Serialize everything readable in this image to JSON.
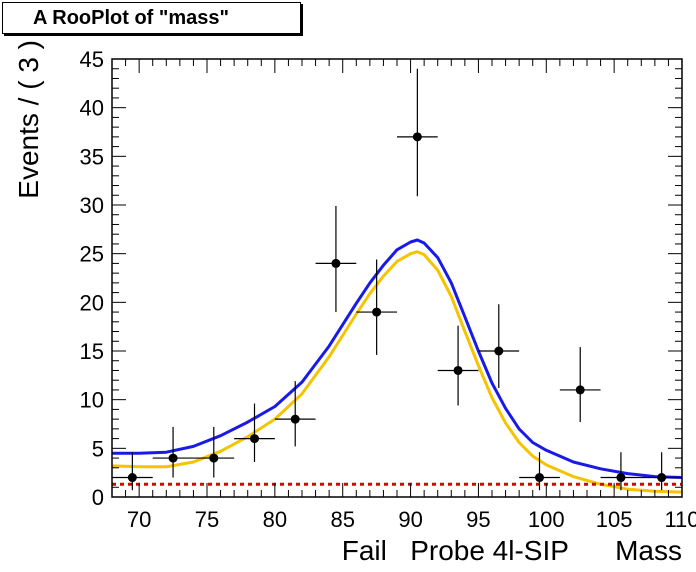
{
  "chart_data": {
    "type": "scatter",
    "title": "A RooPlot of \"mass\"",
    "xlabel": "Fail   Probe 4l-SIP      Mass",
    "ylabel": "Events / ( 3 )",
    "xlim": [
      68,
      110
    ],
    "ylim": [
      0,
      45
    ],
    "xticks": [
      70,
      75,
      80,
      85,
      90,
      95,
      100,
      105,
      110
    ],
    "yticks": [
      0,
      5,
      10,
      15,
      20,
      25,
      30,
      35,
      40,
      45
    ],
    "grid": false,
    "data_points": {
      "x": [
        69.5,
        72.5,
        75.5,
        78.5,
        81.5,
        84.5,
        87.5,
        90.5,
        93.5,
        96.5,
        99.5,
        102.5,
        105.5,
        108.5
      ],
      "y": [
        2,
        4,
        4,
        6,
        8,
        24,
        19,
        37,
        13,
        15,
        2,
        11,
        2,
        2
      ],
      "err_low": [
        1.3,
        2.0,
        2.0,
        2.4,
        2.8,
        5.0,
        4.4,
        6.1,
        3.6,
        3.8,
        1.3,
        3.3,
        1.3,
        1.3
      ],
      "err_high": [
        2.6,
        3.2,
        3.2,
        3.6,
        3.9,
        5.9,
        5.4,
        7.0,
        4.6,
        4.8,
        2.6,
        4.4,
        2.6,
        2.6
      ]
    },
    "series": [
      {
        "color": "#1a1ae6",
        "x": [
          68,
          70,
          72,
          74,
          76,
          78,
          80,
          82,
          84,
          86,
          87,
          88,
          89,
          90,
          90.5,
          91,
          92,
          93,
          94,
          95,
          96,
          97,
          98,
          99,
          100,
          102,
          104,
          106,
          108,
          110
        ],
        "y": [
          4.5,
          4.5,
          4.6,
          5.2,
          6.3,
          7.7,
          9.3,
          11.8,
          15.5,
          19.9,
          22.0,
          23.8,
          25.4,
          26.2,
          26.4,
          26.1,
          24.6,
          22.0,
          18.5,
          15.0,
          11.7,
          9.1,
          7.0,
          5.6,
          4.8,
          3.6,
          2.9,
          2.4,
          2.1,
          2.0
        ]
      },
      {
        "color": "#f5c400",
        "x": [
          68,
          70,
          72,
          74,
          76,
          78,
          80,
          82,
          84,
          86,
          87,
          88,
          89,
          90,
          90.5,
          91,
          92,
          93,
          94,
          95,
          96,
          97,
          98,
          99,
          100,
          102,
          104,
          106,
          108,
          110
        ],
        "y": [
          3.2,
          3.1,
          3.1,
          3.6,
          4.7,
          6.2,
          8.0,
          10.6,
          14.4,
          18.8,
          20.9,
          22.7,
          24.2,
          25.0,
          25.2,
          24.9,
          23.3,
          20.6,
          17.0,
          13.5,
          10.2,
          7.6,
          5.6,
          4.2,
          3.3,
          2.1,
          1.3,
          0.8,
          0.6,
          0.5
        ]
      },
      {
        "color": "#e00000",
        "dashed": true,
        "x": [
          68,
          110
        ],
        "y": [
          1.3,
          1.3
        ]
      }
    ]
  }
}
